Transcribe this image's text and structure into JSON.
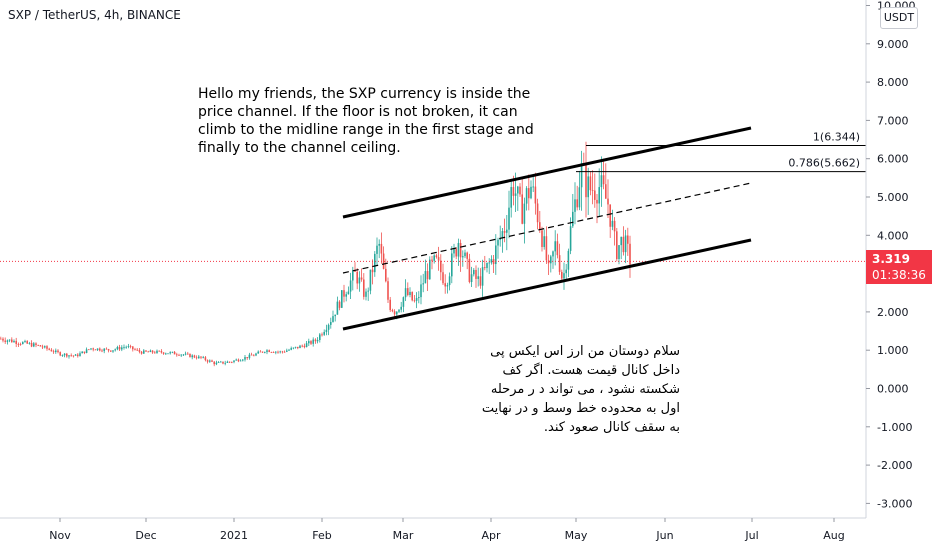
{
  "title": "SXP / TetherUS, 4h, BINANCE",
  "currency_button": "USDT",
  "last_price": "3.319",
  "countdown": "01:38:36",
  "note_english": "Hello my friends, the SXP currency is inside the\n price channel. If the floor is not broken, it can\nclimb to the midline range in the first stage and\nfinally to the channel ceiling.",
  "note_persian": "سلام دوستان من ارز اس ایکس پی داخل کانال قیمت هست. اگر کف شکسته نشود ، می تواند د ر مرحله اول به محدوده خط وسط و در نهایت به سقف کانال صعود کند.",
  "colors": {
    "up": "#26a69a",
    "down": "#ef5350",
    "last_price_line": "#f23645",
    "channel": "#000000"
  },
  "chart_data": {
    "type": "candlestick",
    "title": "SXP / TetherUS, 4h, BINANCE",
    "x_ticks": [
      "Nov",
      "Dec",
      "2021",
      "Feb",
      "Mar",
      "Apr",
      "May",
      "Jun",
      "Jul",
      "Aug"
    ],
    "y_ticks": [
      "10.000",
      "9.000",
      "8.000",
      "7.000",
      "6.000",
      "5.000",
      "4.000",
      "3.000",
      "2.000",
      "1.000",
      "0.000",
      "-1.000",
      "-2.000",
      "-3.000"
    ],
    "ylim": [
      -3.4,
      10
    ],
    "last_price": 3.319,
    "fib_levels": [
      {
        "label": "1(6.344)",
        "value": 6.344
      },
      {
        "label": "0.786(5.662)",
        "value": 5.662
      }
    ],
    "price_path": [
      [
        0,
        1.3
      ],
      [
        20,
        1.2
      ],
      [
        40,
        1.1
      ],
      [
        60,
        0.9
      ],
      [
        75,
        0.85
      ],
      [
        90,
        1.05
      ],
      [
        110,
        1.0
      ],
      [
        125,
        1.1
      ],
      [
        140,
        0.95
      ],
      [
        160,
        0.95
      ],
      [
        180,
        0.9
      ],
      [
        200,
        0.8
      ],
      [
        215,
        0.65
      ],
      [
        230,
        0.7
      ],
      [
        250,
        0.85
      ],
      [
        265,
        1.0
      ],
      [
        280,
        0.95
      ],
      [
        300,
        1.1
      ],
      [
        315,
        1.25
      ],
      [
        330,
        1.8
      ],
      [
        345,
        2.6
      ],
      [
        355,
        3.0
      ],
      [
        365,
        2.4
      ],
      [
        378,
        3.8
      ],
      [
        388,
        2.2
      ],
      [
        395,
        2.0
      ],
      [
        405,
        2.5
      ],
      [
        415,
        2.2
      ],
      [
        425,
        3.0
      ],
      [
        435,
        3.3
      ],
      [
        445,
        2.8
      ],
      [
        458,
        3.9
      ],
      [
        468,
        3.0
      ],
      [
        478,
        2.8
      ],
      [
        492,
        3.4
      ],
      [
        505,
        4.3
      ],
      [
        512,
        5.4
      ],
      [
        520,
        4.6
      ],
      [
        530,
        5.3
      ],
      [
        540,
        4.2
      ],
      [
        548,
        3.0
      ],
      [
        555,
        3.8
      ],
      [
        562,
        2.8
      ],
      [
        572,
        4.5
      ],
      [
        580,
        5.7
      ],
      [
        588,
        5.2
      ],
      [
        598,
        5.3
      ],
      [
        608,
        4.8
      ],
      [
        615,
        3.6
      ],
      [
        622,
        3.9
      ],
      [
        630,
        3.32
      ]
    ]
  }
}
